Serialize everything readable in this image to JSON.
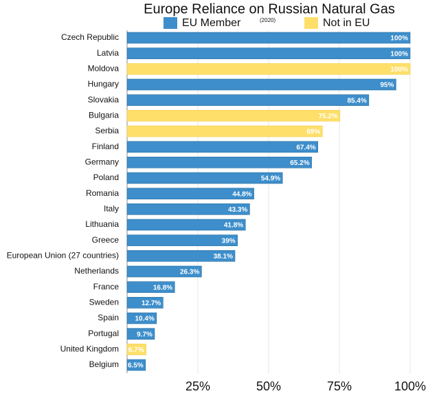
{
  "chart_data": {
    "type": "bar",
    "orientation": "horizontal",
    "title": "Europe Reliance on Russian Natural Gas",
    "subtitle": "(2020)",
    "categories": [
      "Czech Republic",
      "Latvia",
      "Moldova",
      "Hungary",
      "Slovakia",
      "Bulgaria",
      "Serbia",
      "Finland",
      "Germany",
      "Poland",
      "Romania",
      "Italy",
      "Lithuania",
      "Greece",
      "European Union (27 countries)",
      "Netherlands",
      "France",
      "Sweden",
      "Spain",
      "Portugal",
      "United Kingdom",
      "Belgium"
    ],
    "series": [
      {
        "name": "EU Member",
        "color": "#3d8ecb",
        "values": [
          100,
          100,
          null,
          95,
          85.4,
          null,
          null,
          67.4,
          65.2,
          54.9,
          44.8,
          43.3,
          41.8,
          39,
          38.1,
          26.3,
          16.8,
          12.7,
          10.4,
          9.7,
          null,
          6.5
        ],
        "value_labels": [
          "100%",
          "100%",
          null,
          "95%",
          "85.4%",
          null,
          null,
          "67.4%",
          "65.2%",
          "54.9%",
          "44.8%",
          "43.3%",
          "41.8%",
          "39%",
          "38.1%",
          "26.3%",
          "16.8%",
          "12.7%",
          "10.4%",
          "9.7%",
          null,
          "6.5%"
        ]
      },
      {
        "name": "Not in EU",
        "color": "#fedf6a",
        "values": [
          null,
          null,
          100,
          null,
          null,
          75.2,
          69,
          null,
          null,
          null,
          null,
          null,
          null,
          null,
          null,
          null,
          null,
          null,
          null,
          null,
          6.7,
          null
        ],
        "value_labels": [
          null,
          null,
          "100%",
          null,
          null,
          "75.2%",
          "69%",
          null,
          null,
          null,
          null,
          null,
          null,
          null,
          null,
          null,
          null,
          null,
          null,
          null,
          "6.7%",
          null
        ]
      }
    ],
    "xlim": [
      0,
      100
    ],
    "xticks": [
      {
        "value": 25,
        "label": "25%"
      },
      {
        "value": 50,
        "label": "50%"
      },
      {
        "value": 75,
        "label": "75%"
      },
      {
        "value": 100,
        "label": "100%"
      }
    ],
    "grid": true
  }
}
